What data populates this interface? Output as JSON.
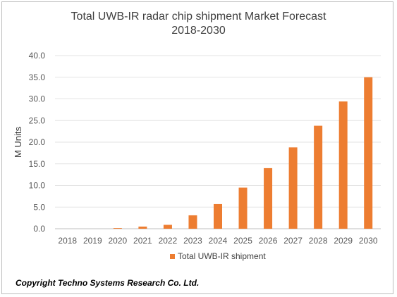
{
  "chart_data": {
    "type": "bar",
    "title_line1": "Total UWB-IR radar chip shipment Market Forecast",
    "title_line2": "2018-2030",
    "xlabel": "",
    "ylabel": "M Units",
    "ylim": [
      0,
      40
    ],
    "ytick_step": 5,
    "ytick_labels": [
      "0.0",
      "5.0",
      "10.0",
      "15.0",
      "20.0",
      "25.0",
      "30.0",
      "35.0",
      "40.0"
    ],
    "categories": [
      "2018",
      "2019",
      "2020",
      "2021",
      "2022",
      "2023",
      "2024",
      "2025",
      "2026",
      "2027",
      "2028",
      "2029",
      "2030"
    ],
    "series": [
      {
        "name": "Total UWB-IR shipment",
        "color": "#ED7D31",
        "values": [
          0.0,
          0.0,
          0.15,
          0.5,
          0.9,
          3.1,
          5.7,
          9.5,
          14.0,
          18.8,
          23.8,
          29.4,
          35.0
        ]
      }
    ],
    "grid": true,
    "legend_position": "bottom"
  },
  "footer": {
    "copyright": "Copyright Techno Systems Research Co. Ltd."
  }
}
